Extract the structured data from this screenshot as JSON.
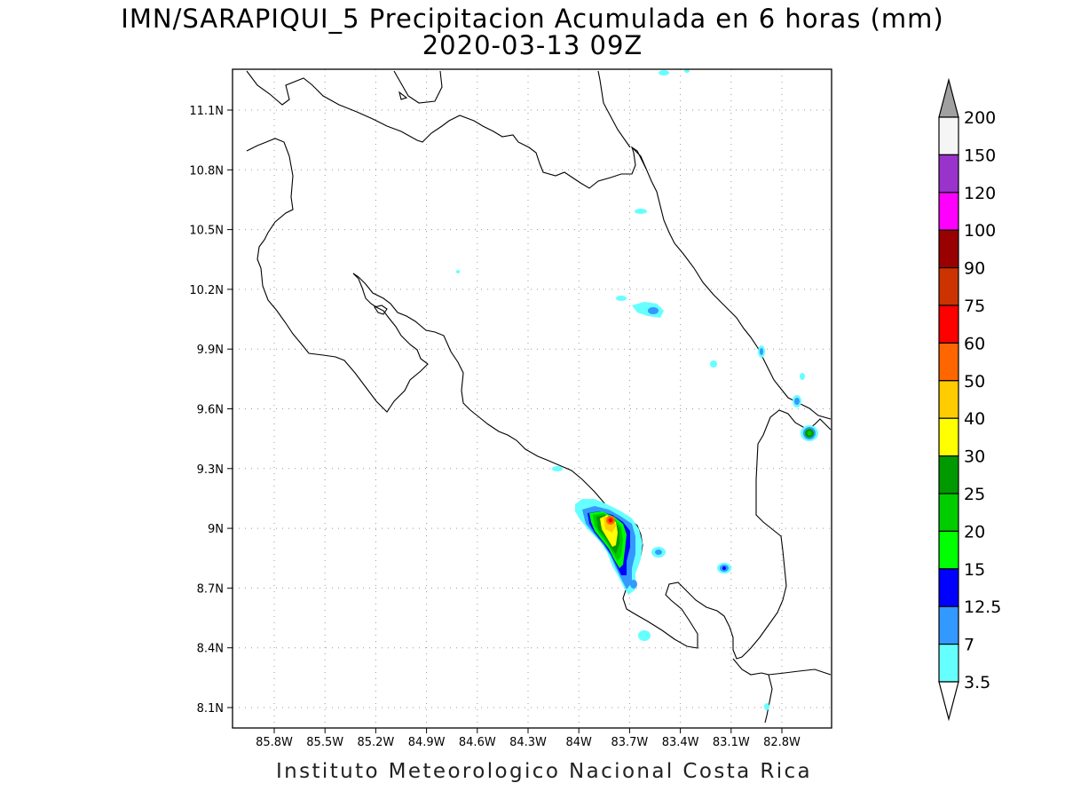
{
  "title": {
    "line1": "IMN/SARAPIQUI_5 Precipitacion Acumulada en 6 horas (mm)",
    "line2": "2020-03-13 09Z"
  },
  "footer": "Instituto Meteorologico Nacional Costa Rica",
  "map": {
    "lon_range": [
      -86.05,
      -82.6
    ],
    "lat_range": [
      8.0,
      11.3
    ],
    "lat_ticks": [
      "11.1N",
      "10.8N",
      "10.5N",
      "10.2N",
      "9.9N",
      "9.6N",
      "9.3N",
      "9N",
      "8.7N",
      "8.4N",
      "8.1N"
    ],
    "lon_ticks": [
      "85.8W",
      "85.5W",
      "85.2W",
      "84.9W",
      "84.6W",
      "84.3W",
      "84W",
      "83.7W",
      "83.4W",
      "83.1W",
      "82.8W"
    ],
    "grid": "dotted"
  },
  "colorbar": {
    "levels": [
      "200",
      "150",
      "120",
      "100",
      "90",
      "75",
      "60",
      "50",
      "40",
      "30",
      "25",
      "20",
      "15",
      "12.5",
      "7",
      "3.5"
    ],
    "colors": [
      "#a0a0a0",
      "#f5f5f5",
      "#9933cc",
      "#ff00ff",
      "#990000",
      "#cc3300",
      "#ff0000",
      "#ff6600",
      "#ffcc00",
      "#ffff00",
      "#009900",
      "#00cc00",
      "#00ff00",
      "#0000ff",
      "#3399ff",
      "#66ffff",
      "#ffffff"
    ]
  }
}
